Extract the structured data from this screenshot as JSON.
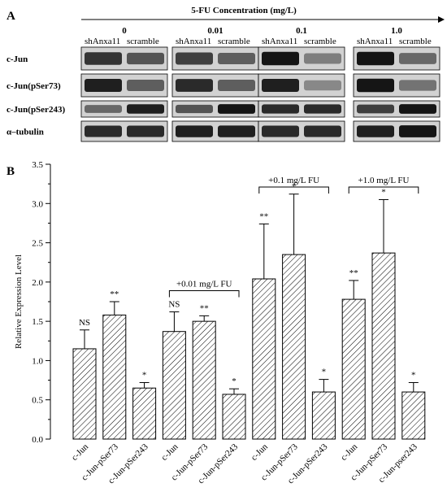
{
  "panel_a": {
    "letter": "A",
    "concentration_title": "5-FU Concentration (mg/L)",
    "concentrations": [
      "0",
      "0.01",
      "0.1",
      "1.0"
    ],
    "lane_labels": [
      "shAnxa11",
      "scramble"
    ],
    "rows": [
      "c-Jun",
      "c-Jun(pSer73)",
      "c-Jun(pSer243)",
      "α–tubulin"
    ],
    "band_intensity": [
      [
        [
          0.8,
          0.65
        ],
        [
          0.75,
          0.6
        ],
        [
          0.95,
          0.45
        ],
        [
          0.95,
          0.55
        ]
      ],
      [
        [
          0.9,
          0.6
        ],
        [
          0.85,
          0.6
        ],
        [
          0.9,
          0.4
        ],
        [
          0.95,
          0.5
        ]
      ],
      [
        [
          0.55,
          0.9
        ],
        [
          0.65,
          0.95
        ],
        [
          0.85,
          0.85
        ],
        [
          0.75,
          0.95
        ]
      ],
      [
        [
          0.85,
          0.85
        ],
        [
          0.9,
          0.9
        ],
        [
          0.85,
          0.85
        ],
        [
          0.9,
          0.95
        ]
      ]
    ]
  },
  "panel_b": {
    "letter": "B"
  },
  "chart_data": {
    "type": "bar",
    "ylabel": "Relative Expression Level",
    "ylim": [
      0,
      3.5
    ],
    "yticks": [
      "0.0",
      "0.5",
      "1.0",
      "1.5",
      "2.0",
      "2.5",
      "3.0",
      "3.5"
    ],
    "categories": [
      "c-Jun",
      "c-Jun-pSer73",
      "c-Jun-pSer243",
      "c-Jun",
      "c-Jun-pSer73",
      "c-Jun-pSer243",
      "c-Jun",
      "c-Jun-pSer73",
      "c-Jun-pSer243",
      "c-Jun",
      "c-Jun-pSer73",
      "c-Jun-pser243"
    ],
    "values": [
      1.15,
      1.58,
      0.65,
      1.37,
      1.5,
      0.57,
      2.04,
      2.35,
      0.6,
      1.78,
      2.37,
      0.6
    ],
    "errors": [
      0.24,
      0.17,
      0.07,
      0.25,
      0.07,
      0.07,
      0.7,
      0.77,
      0.16,
      0.24,
      0.68,
      0.12
    ],
    "significance": [
      "NS",
      "**",
      "*",
      "NS",
      "**",
      "*",
      "**",
      "*",
      "*",
      "**",
      "*",
      "*"
    ],
    "groups": [
      {
        "label": "+0.01 mg/L FU",
        "from": 3,
        "to": 5
      },
      {
        "label": "+0.1 mg/L FU",
        "from": 6,
        "to": 8
      },
      {
        "label": "+1.0 mg/L FU",
        "from": 9,
        "to": 11
      }
    ],
    "bar_fill": "hatched",
    "grid": false
  }
}
